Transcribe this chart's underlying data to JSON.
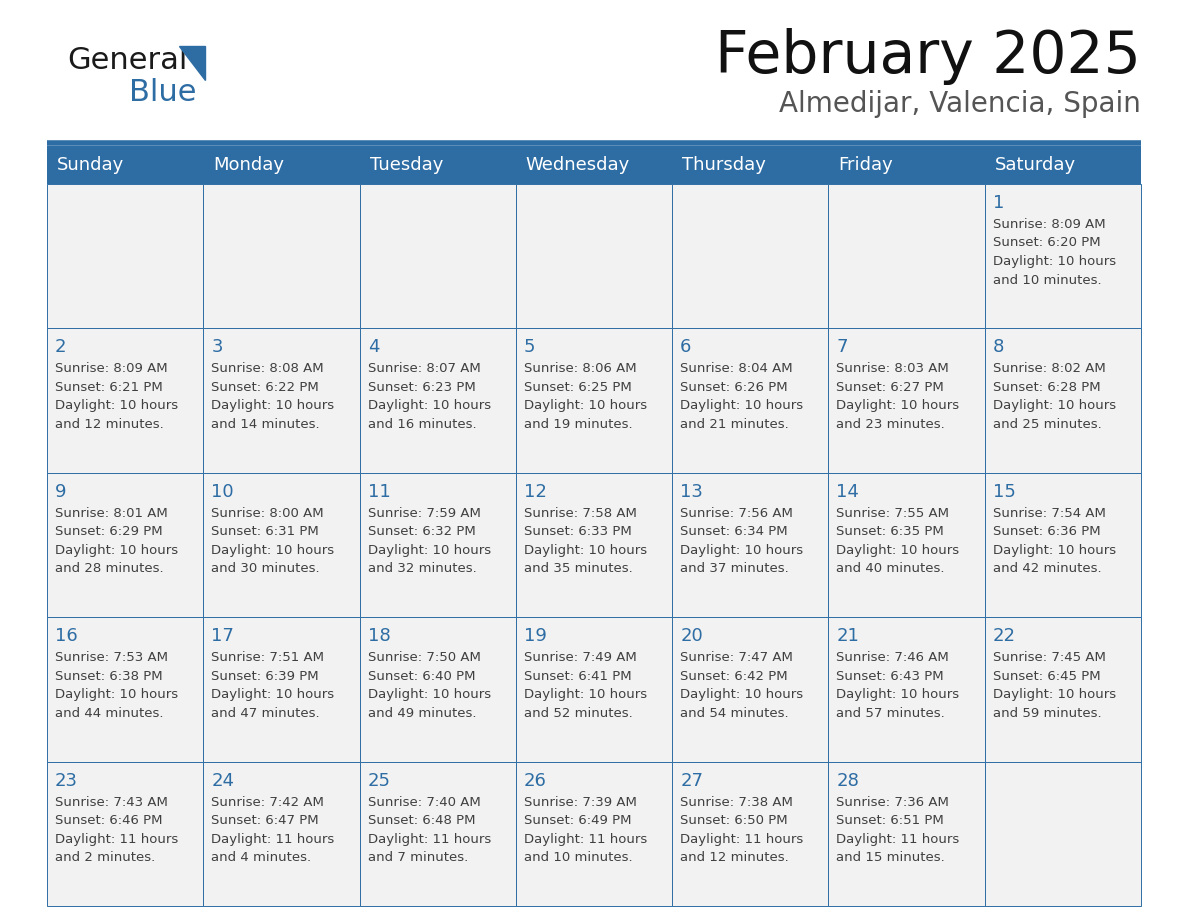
{
  "title": "February 2025",
  "subtitle": "Almedijar, Valencia, Spain",
  "header_bg_color": "#2E6DA4",
  "header_text_color": "#FFFFFF",
  "cell_bg_even": "#F2F2F2",
  "cell_bg_odd": "#FFFFFF",
  "cell_border_color": "#2E6DA4",
  "day_number_color": "#2E6DA4",
  "detail_text_color": "#404040",
  "background_color": "#FFFFFF",
  "logo_general_color": "#1a1a1a",
  "logo_blue_color": "#2E6DA4",
  "logo_triangle_color": "#2E6DA4",
  "days_of_week": [
    "Sunday",
    "Monday",
    "Tuesday",
    "Wednesday",
    "Thursday",
    "Friday",
    "Saturday"
  ],
  "weeks": [
    [
      {
        "day": 0
      },
      {
        "day": 0
      },
      {
        "day": 0
      },
      {
        "day": 0
      },
      {
        "day": 0
      },
      {
        "day": 0
      },
      {
        "day": 1,
        "sunrise": "8:09 AM",
        "sunset": "6:20 PM",
        "daylight_h": "10 hours",
        "daylight_m": "and 10 minutes."
      }
    ],
    [
      {
        "day": 2,
        "sunrise": "8:09 AM",
        "sunset": "6:21 PM",
        "daylight_h": "10 hours",
        "daylight_m": "and 12 minutes."
      },
      {
        "day": 3,
        "sunrise": "8:08 AM",
        "sunset": "6:22 PM",
        "daylight_h": "10 hours",
        "daylight_m": "and 14 minutes."
      },
      {
        "day": 4,
        "sunrise": "8:07 AM",
        "sunset": "6:23 PM",
        "daylight_h": "10 hours",
        "daylight_m": "and 16 minutes."
      },
      {
        "day": 5,
        "sunrise": "8:06 AM",
        "sunset": "6:25 PM",
        "daylight_h": "10 hours",
        "daylight_m": "and 19 minutes."
      },
      {
        "day": 6,
        "sunrise": "8:04 AM",
        "sunset": "6:26 PM",
        "daylight_h": "10 hours",
        "daylight_m": "and 21 minutes."
      },
      {
        "day": 7,
        "sunrise": "8:03 AM",
        "sunset": "6:27 PM",
        "daylight_h": "10 hours",
        "daylight_m": "and 23 minutes."
      },
      {
        "day": 8,
        "sunrise": "8:02 AM",
        "sunset": "6:28 PM",
        "daylight_h": "10 hours",
        "daylight_m": "and 25 minutes."
      }
    ],
    [
      {
        "day": 9,
        "sunrise": "8:01 AM",
        "sunset": "6:29 PM",
        "daylight_h": "10 hours",
        "daylight_m": "and 28 minutes."
      },
      {
        "day": 10,
        "sunrise": "8:00 AM",
        "sunset": "6:31 PM",
        "daylight_h": "10 hours",
        "daylight_m": "and 30 minutes."
      },
      {
        "day": 11,
        "sunrise": "7:59 AM",
        "sunset": "6:32 PM",
        "daylight_h": "10 hours",
        "daylight_m": "and 32 minutes."
      },
      {
        "day": 12,
        "sunrise": "7:58 AM",
        "sunset": "6:33 PM",
        "daylight_h": "10 hours",
        "daylight_m": "and 35 minutes."
      },
      {
        "day": 13,
        "sunrise": "7:56 AM",
        "sunset": "6:34 PM",
        "daylight_h": "10 hours",
        "daylight_m": "and 37 minutes."
      },
      {
        "day": 14,
        "sunrise": "7:55 AM",
        "sunset": "6:35 PM",
        "daylight_h": "10 hours",
        "daylight_m": "and 40 minutes."
      },
      {
        "day": 15,
        "sunrise": "7:54 AM",
        "sunset": "6:36 PM",
        "daylight_h": "10 hours",
        "daylight_m": "and 42 minutes."
      }
    ],
    [
      {
        "day": 16,
        "sunrise": "7:53 AM",
        "sunset": "6:38 PM",
        "daylight_h": "10 hours",
        "daylight_m": "and 44 minutes."
      },
      {
        "day": 17,
        "sunrise": "7:51 AM",
        "sunset": "6:39 PM",
        "daylight_h": "10 hours",
        "daylight_m": "and 47 minutes."
      },
      {
        "day": 18,
        "sunrise": "7:50 AM",
        "sunset": "6:40 PM",
        "daylight_h": "10 hours",
        "daylight_m": "and 49 minutes."
      },
      {
        "day": 19,
        "sunrise": "7:49 AM",
        "sunset": "6:41 PM",
        "daylight_h": "10 hours",
        "daylight_m": "and 52 minutes."
      },
      {
        "day": 20,
        "sunrise": "7:47 AM",
        "sunset": "6:42 PM",
        "daylight_h": "10 hours",
        "daylight_m": "and 54 minutes."
      },
      {
        "day": 21,
        "sunrise": "7:46 AM",
        "sunset": "6:43 PM",
        "daylight_h": "10 hours",
        "daylight_m": "and 57 minutes."
      },
      {
        "day": 22,
        "sunrise": "7:45 AM",
        "sunset": "6:45 PM",
        "daylight_h": "10 hours",
        "daylight_m": "and 59 minutes."
      }
    ],
    [
      {
        "day": 23,
        "sunrise": "7:43 AM",
        "sunset": "6:46 PM",
        "daylight_h": "11 hours",
        "daylight_m": "and 2 minutes."
      },
      {
        "day": 24,
        "sunrise": "7:42 AM",
        "sunset": "6:47 PM",
        "daylight_h": "11 hours",
        "daylight_m": "and 4 minutes."
      },
      {
        "day": 25,
        "sunrise": "7:40 AM",
        "sunset": "6:48 PM",
        "daylight_h": "11 hours",
        "daylight_m": "and 7 minutes."
      },
      {
        "day": 26,
        "sunrise": "7:39 AM",
        "sunset": "6:49 PM",
        "daylight_h": "11 hours",
        "daylight_m": "and 10 minutes."
      },
      {
        "day": 27,
        "sunrise": "7:38 AM",
        "sunset": "6:50 PM",
        "daylight_h": "11 hours",
        "daylight_m": "and 12 minutes."
      },
      {
        "day": 28,
        "sunrise": "7:36 AM",
        "sunset": "6:51 PM",
        "daylight_h": "11 hours",
        "daylight_m": "and 15 minutes."
      },
      {
        "day": 0
      }
    ]
  ],
  "fig_width": 11.88,
  "fig_height": 9.18,
  "dpi": 100
}
